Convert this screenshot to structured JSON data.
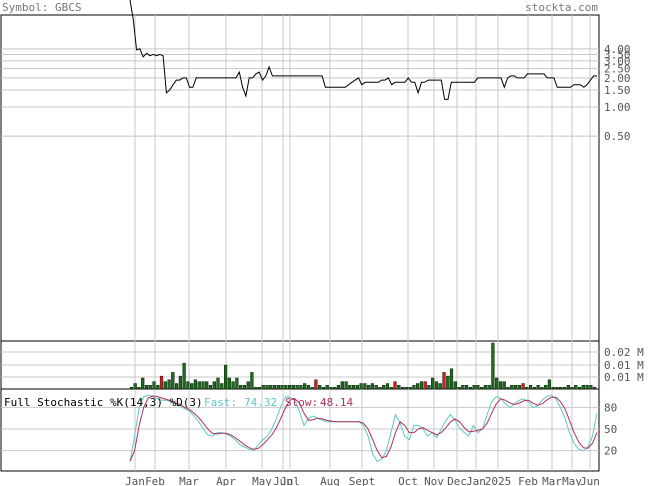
{
  "header": {
    "symbol_text": "Symbol: GBCS",
    "site": "stockta.com"
  },
  "stochastic": {
    "title": "Full Stochastic %K(14,3) %D(3)",
    "fast_label": "Fast:",
    "fast_value": "74.32",
    "slow_label": "Slow:",
    "slow_value": "48.14"
  },
  "colors": {
    "price": "#000000",
    "grid": "#c8c8c8",
    "vol_up": "#1a6b1a",
    "vol_down": "#cc1f1f",
    "fast": "#5fc8c8",
    "slow": "#b3305f"
  },
  "chart_data": [
    {
      "type": "line",
      "name": "price",
      "y_scale": "log",
      "y_ticks": [
        "4.00",
        "3.50",
        "3.00",
        "2.50",
        "2.00",
        "1.50",
        "1.00",
        "0.50"
      ],
      "x_month_labels": [
        "Jan",
        "Feb",
        "Mar",
        "Apr",
        "May",
        "Jun",
        "Jul",
        "Aug",
        "Sept",
        "Oct",
        "Nov",
        "Dec",
        "Jan",
        "2025",
        "Feb",
        "Mar",
        "May",
        "Jun"
      ],
      "values": [
        100,
        8,
        3.9,
        4.0,
        3.3,
        3.6,
        3.4,
        3.5,
        3.4,
        3.5,
        3.4,
        1.4,
        1.5,
        1.7,
        1.9,
        1.9,
        2.0,
        2.0,
        1.6,
        1.6,
        2.0,
        2.0,
        2.0,
        2.0,
        2.0,
        2.0,
        2.0,
        2.0,
        2.0,
        2.0,
        2.0,
        2.0,
        2.0,
        2.3,
        1.6,
        1.3,
        2.0,
        2.0,
        2.2,
        2.3,
        1.9,
        2.1,
        2.6,
        2.1,
        2.1,
        2.1,
        2.1,
        2.1,
        2.1,
        2.1,
        2.1,
        2.1,
        2.1,
        2.1,
        2.1,
        2.1,
        2.1,
        2.1,
        2.1,
        1.6,
        1.6,
        1.6,
        1.6,
        1.6,
        1.6,
        1.6,
        1.7,
        1.8,
        1.9,
        2.0,
        1.7,
        1.8,
        1.8,
        1.8,
        1.8,
        1.8,
        1.9,
        1.9,
        2.0,
        1.7,
        1.8,
        1.8,
        1.8,
        1.8,
        2.0,
        1.8,
        1.8,
        1.4,
        1.8,
        1.8,
        1.9,
        1.9,
        1.9,
        1.9,
        1.9,
        1.2,
        1.2,
        1.8,
        1.8,
        1.8,
        1.8,
        1.8,
        1.8,
        1.8,
        1.8,
        2.0,
        2.0,
        2.0,
        2.0,
        2.0,
        2.0,
        2.0,
        2.0,
        1.6,
        2.0,
        2.1,
        2.1,
        2.0,
        2.0,
        2.0,
        2.2,
        2.2,
        2.2,
        2.2,
        2.2,
        2.2,
        2.0,
        2.0,
        2.0,
        1.6,
        1.6,
        1.6,
        1.6,
        1.6,
        1.7,
        1.7,
        1.7,
        1.6,
        1.7,
        1.9,
        2.1,
        2.1
      ]
    },
    {
      "type": "bar",
      "name": "volume",
      "y_ticks": [
        "0.02 M",
        "0.01 M",
        "0.01 M"
      ],
      "values": [
        0.001,
        0.003,
        0.001,
        0.006,
        0.002,
        0.002,
        0.004,
        0.002,
        0.007,
        0.004,
        0.005,
        0.009,
        0.003,
        0.007,
        0.014,
        0.004,
        0.003,
        0.005,
        0.004,
        0.004,
        0.004,
        0.002,
        0.004,
        0.006,
        0.003,
        0.013,
        0.006,
        0.004,
        0.006,
        0.002,
        0.002,
        0.004,
        0.009,
        0.001,
        0.001,
        0.002,
        0.002,
        0.002,
        0.002,
        0.002,
        0.002,
        0.002,
        0.002,
        0.002,
        0.002,
        0.002,
        0.003,
        0.002,
        0.001,
        0.005,
        0.002,
        0.001,
        0.002,
        0.001,
        0.001,
        0.002,
        0.004,
        0.004,
        0.002,
        0.002,
        0.002,
        0.003,
        0.003,
        0.002,
        0.003,
        0.002,
        0.001,
        0.002,
        0.003,
        0.001,
        0.004,
        0.002,
        0.001,
        0.001,
        0.001,
        0.002,
        0.003,
        0.004,
        0.004,
        0.002,
        0.006,
        0.004,
        0.003,
        0.009,
        0.007,
        0.011,
        0.004,
        0.001,
        0.002,
        0.002,
        0.001,
        0.002,
        0.002,
        0.001,
        0.002,
        0.002,
        0.025,
        0.006,
        0.004,
        0.004,
        0.001,
        0.002,
        0.002,
        0.002,
        0.003,
        0.001,
        0.002,
        0.001,
        0.002,
        0.001,
        0.002,
        0.005,
        0.001,
        0.001,
        0.001,
        0.001,
        0.002,
        0.001,
        0.002,
        0.001,
        0.002,
        0.002,
        0.002,
        0.001
      ],
      "direction": [
        1,
        1,
        1,
        1,
        1,
        1,
        1,
        1,
        0,
        1,
        1,
        1,
        1,
        1,
        1,
        1,
        1,
        1,
        1,
        1,
        1,
        1,
        1,
        1,
        1,
        1,
        1,
        1,
        1,
        1,
        1,
        1,
        1,
        1,
        1,
        1,
        1,
        1,
        1,
        1,
        1,
        1,
        1,
        1,
        1,
        1,
        1,
        1,
        1,
        0,
        1,
        1,
        1,
        1,
        1,
        1,
        1,
        1,
        1,
        1,
        1,
        1,
        1,
        1,
        1,
        1,
        1,
        1,
        1,
        1,
        0,
        1,
        1,
        1,
        1,
        1,
        1,
        1,
        0,
        1,
        1,
        1,
        1,
        0,
        1,
        1,
        1,
        1,
        1,
        1,
        1,
        1,
        1,
        1,
        1,
        1,
        1,
        1,
        1,
        1,
        1,
        1,
        1,
        1,
        0,
        1,
        1,
        1,
        1,
        1,
        1,
        1,
        1,
        1,
        1,
        1,
        1,
        1,
        1,
        1,
        1,
        1,
        1,
        1,
        1,
        1
      ]
    },
    {
      "type": "line",
      "name": "stochastic",
      "y_ticks": [
        "80",
        "50",
        "20"
      ],
      "ylim": [
        0,
        100
      ],
      "fast": [
        5,
        40,
        80,
        95,
        97,
        95,
        92,
        90,
        90,
        88,
        85,
        82,
        78,
        75,
        68,
        60,
        50,
        42,
        40,
        45,
        45,
        43,
        40,
        35,
        28,
        25,
        22,
        20,
        28,
        35,
        40,
        50,
        65,
        82,
        95,
        94,
        90,
        75,
        55,
        65,
        68,
        65,
        62,
        60,
        60,
        60,
        60,
        60,
        60,
        60,
        60,
        55,
        40,
        15,
        5,
        8,
        20,
        45,
        70,
        58,
        40,
        35,
        55,
        55,
        50,
        40,
        45,
        38,
        50,
        62,
        70,
        62,
        52,
        45,
        40,
        55,
        45,
        50,
        70,
        88,
        95,
        92,
        85,
        80,
        85,
        90,
        92,
        88,
        80,
        82,
        90,
        95,
        97,
        92,
        80,
        65,
        45,
        30,
        22,
        20,
        25,
        40,
        72
      ],
      "slow": [
        5,
        20,
        55,
        80,
        93,
        96,
        95,
        93,
        91,
        89,
        86,
        84,
        80,
        77,
        72,
        66,
        58,
        50,
        44,
        43,
        44,
        44,
        42,
        38,
        33,
        28,
        24,
        22,
        23,
        28,
        35,
        42,
        52,
        66,
        80,
        90,
        92,
        86,
        72,
        62,
        63,
        65,
        64,
        62,
        61,
        60,
        60,
        60,
        60,
        60,
        60,
        58,
        50,
        35,
        20,
        10,
        12,
        25,
        45,
        60,
        55,
        45,
        45,
        50,
        52,
        48,
        45,
        42,
        45,
        52,
        60,
        64,
        60,
        52,
        46,
        47,
        48,
        50,
        58,
        72,
        85,
        92,
        90,
        86,
        84,
        86,
        89,
        90,
        86,
        83,
        85,
        90,
        94,
        94,
        88,
        78,
        62,
        45,
        32,
        24,
        23,
        30,
        45
      ]
    }
  ]
}
